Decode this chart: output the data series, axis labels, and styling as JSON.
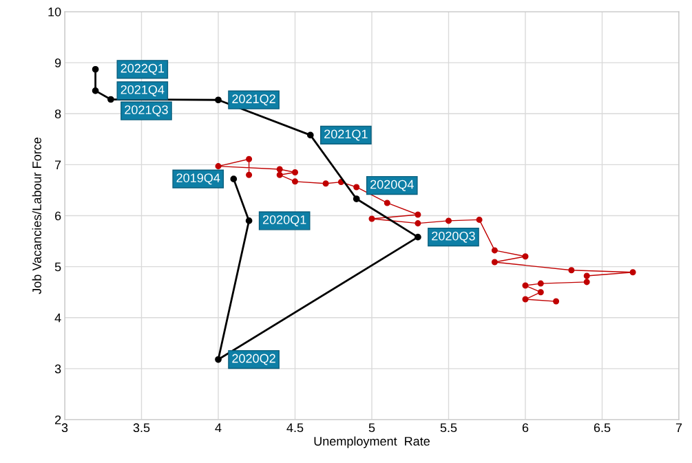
{
  "chart_data": {
    "type": "line",
    "xlabel": "Unemployment  Rate",
    "ylabel": "Job Vacancies/Labour Force",
    "xlim": [
      3,
      7
    ],
    "ylim": [
      2,
      10
    ],
    "xticks": [
      3,
      3.5,
      4,
      4.5,
      5,
      5.5,
      6,
      6.5,
      7
    ],
    "yticks": [
      2,
      3,
      4,
      5,
      6,
      7,
      8,
      9,
      10
    ],
    "grid": true,
    "marker": "circle",
    "line_style": "solid",
    "series": [
      {
        "color": "#c00000",
        "x": [
          6.2,
          6.0,
          6.1,
          6.0,
          6.1,
          6.4,
          6.4,
          6.7,
          6.3,
          5.8,
          6.0,
          5.8,
          5.7,
          5.5,
          5.3,
          5.0,
          5.3,
          5.1,
          4.9,
          4.8,
          4.7,
          4.5,
          4.4,
          4.5,
          4.4,
          4.0,
          4.2,
          4.2
        ],
        "values": [
          4.32,
          4.36,
          4.5,
          4.63,
          4.67,
          4.7,
          4.82,
          4.89,
          4.93,
          5.09,
          5.2,
          5.32,
          5.92,
          5.9,
          5.85,
          5.94,
          6.02,
          6.25,
          6.56,
          6.66,
          6.63,
          6.67,
          6.8,
          6.85,
          6.91,
          6.97,
          7.11,
          6.8
        ]
      },
      {
        "color": "#000000",
        "x": [
          4.1,
          4.2,
          4.0,
          5.3,
          4.9,
          4.6,
          4.0,
          3.3,
          3.2,
          3.2
        ],
        "values": [
          6.72,
          5.9,
          3.18,
          5.58,
          6.33,
          7.58,
          8.27,
          8.28,
          8.45,
          8.87
        ]
      }
    ],
    "annotations": [
      {
        "text": "2019Q4",
        "x": 4.1,
        "y": 6.72
      },
      {
        "text": "2020Q1",
        "x": 4.2,
        "y": 5.9
      },
      {
        "text": "2020Q2",
        "x": 4.0,
        "y": 3.18
      },
      {
        "text": "2020Q3",
        "x": 5.3,
        "y": 5.58
      },
      {
        "text": "2020Q4",
        "x": 4.9,
        "y": 6.33
      },
      {
        "text": "2021Q1",
        "x": 4.6,
        "y": 7.58
      },
      {
        "text": "2021Q2",
        "x": 4.0,
        "y": 8.27
      },
      {
        "text": "2021Q3",
        "x": 3.3,
        "y": 8.28
      },
      {
        "text": "2021Q4",
        "x": 3.2,
        "y": 8.45
      },
      {
        "text": "2022Q1",
        "x": 3.2,
        "y": 8.87
      }
    ]
  }
}
